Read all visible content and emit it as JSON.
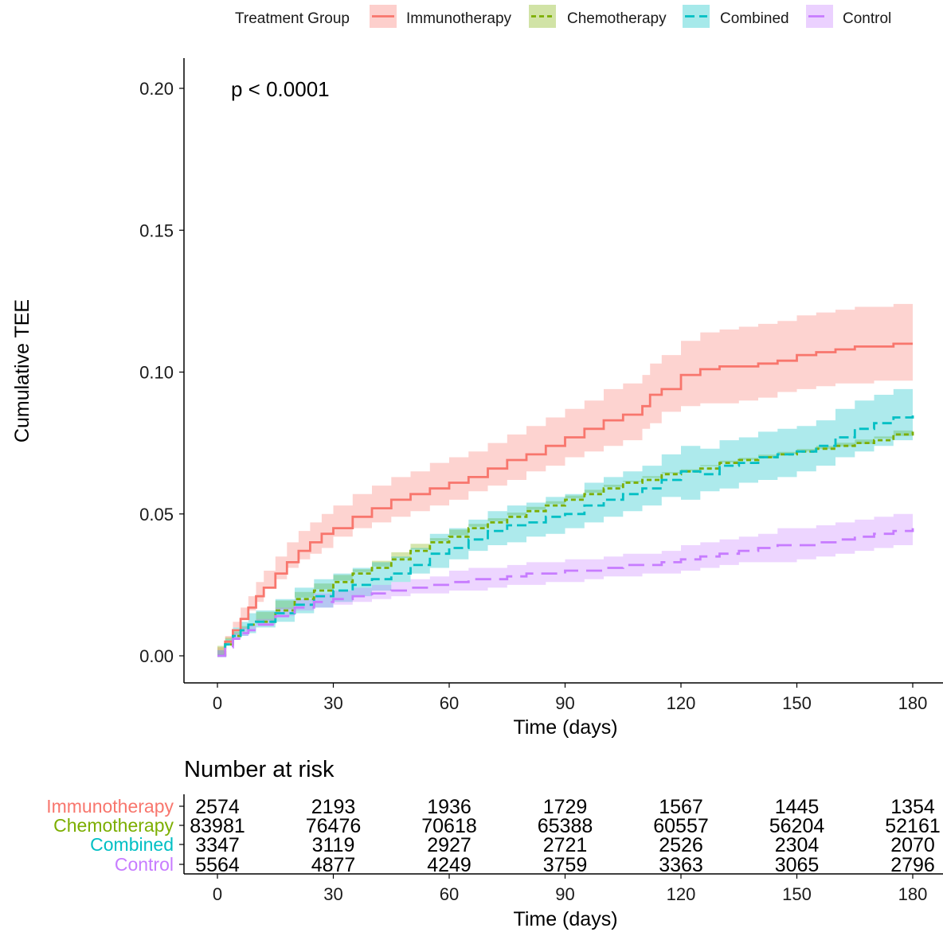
{
  "legend": {
    "title": "Treatment Group"
  },
  "pvalue": "p < 0.0001",
  "colors": {
    "Immunotherapy": "#F8766D",
    "Chemotherapy": "#7CAE00",
    "Combined": "#00BFC4",
    "Control": "#C77CFF"
  },
  "chart_data": [
    {
      "type": "line",
      "subtype": "cumulative-incidence-step",
      "xlabel": "Time (days)",
      "ylabel": "Cumulative TEE",
      "xlim": [
        0,
        180
      ],
      "ylim": [
        0,
        0.2
      ],
      "x_ticks": [
        0,
        30,
        60,
        90,
        120,
        150,
        180
      ],
      "y_ticks": [
        0.0,
        0.05,
        0.1,
        0.15,
        0.2
      ],
      "y_tick_labels": [
        "0.00",
        "0.05",
        "0.10",
        "0.15",
        "0.20"
      ],
      "grid": false,
      "legend_position": "top",
      "confidence_bands": true,
      "series": [
        {
          "name": "Immunotherapy",
          "line_style": "solid",
          "x": [
            0,
            2,
            4,
            6,
            8,
            10,
            12,
            15,
            18,
            21,
            24,
            27,
            30,
            35,
            40,
            45,
            50,
            55,
            60,
            65,
            70,
            75,
            80,
            85,
            90,
            95,
            100,
            105,
            110,
            112,
            115,
            120,
            125,
            130,
            135,
            140,
            145,
            150,
            155,
            160,
            165,
            170,
            175,
            180
          ],
          "y": [
            0,
            0.005,
            0.009,
            0.013,
            0.017,
            0.021,
            0.024,
            0.029,
            0.033,
            0.037,
            0.04,
            0.043,
            0.045,
            0.049,
            0.052,
            0.055,
            0.057,
            0.059,
            0.061,
            0.063,
            0.066,
            0.069,
            0.071,
            0.074,
            0.077,
            0.08,
            0.083,
            0.085,
            0.088,
            0.092,
            0.094,
            0.099,
            0.101,
            0.102,
            0.102,
            0.103,
            0.104,
            0.106,
            0.107,
            0.108,
            0.109,
            0.109,
            0.11,
            0.11
          ],
          "lower": [
            0,
            0.003,
            0.006,
            0.01,
            0.013,
            0.016,
            0.019,
            0.024,
            0.027,
            0.031,
            0.034,
            0.036,
            0.038,
            0.042,
            0.045,
            0.047,
            0.049,
            0.051,
            0.053,
            0.055,
            0.058,
            0.06,
            0.062,
            0.065,
            0.067,
            0.07,
            0.072,
            0.074,
            0.076,
            0.08,
            0.082,
            0.086,
            0.088,
            0.089,
            0.089,
            0.09,
            0.091,
            0.093,
            0.094,
            0.095,
            0.096,
            0.096,
            0.097,
            0.097
          ],
          "upper": [
            0,
            0.007,
            0.012,
            0.017,
            0.021,
            0.026,
            0.03,
            0.035,
            0.04,
            0.044,
            0.047,
            0.05,
            0.053,
            0.057,
            0.06,
            0.063,
            0.065,
            0.068,
            0.07,
            0.072,
            0.075,
            0.078,
            0.081,
            0.084,
            0.087,
            0.09,
            0.094,
            0.096,
            0.099,
            0.103,
            0.106,
            0.111,
            0.114,
            0.115,
            0.116,
            0.117,
            0.118,
            0.12,
            0.121,
            0.122,
            0.123,
            0.123,
            0.124,
            0.124
          ]
        },
        {
          "name": "Chemotherapy",
          "line_style": "dotted",
          "x": [
            0,
            2,
            4,
            6,
            8,
            10,
            15,
            20,
            25,
            30,
            35,
            40,
            45,
            50,
            55,
            60,
            65,
            70,
            75,
            80,
            85,
            90,
            95,
            100,
            105,
            110,
            115,
            120,
            125,
            130,
            135,
            140,
            145,
            150,
            155,
            160,
            165,
            170,
            175,
            180
          ],
          "y": [
            0,
            0.004,
            0.007,
            0.009,
            0.011,
            0.012,
            0.016,
            0.02,
            0.023,
            0.026,
            0.029,
            0.031,
            0.034,
            0.037,
            0.04,
            0.042,
            0.045,
            0.047,
            0.049,
            0.051,
            0.053,
            0.055,
            0.057,
            0.059,
            0.061,
            0.062,
            0.064,
            0.065,
            0.066,
            0.068,
            0.069,
            0.07,
            0.071,
            0.072,
            0.073,
            0.074,
            0.075,
            0.076,
            0.078,
            0.079
          ],
          "lower": [
            0,
            0.0035,
            0.0065,
            0.0085,
            0.0105,
            0.0115,
            0.0155,
            0.0195,
            0.0225,
            0.0255,
            0.0285,
            0.0305,
            0.0335,
            0.0365,
            0.0395,
            0.0415,
            0.0445,
            0.0465,
            0.0485,
            0.0505,
            0.0525,
            0.0545,
            0.0565,
            0.0585,
            0.0603,
            0.0613,
            0.0633,
            0.0643,
            0.0652,
            0.0672,
            0.0682,
            0.0691,
            0.0701,
            0.0711,
            0.072,
            0.0729,
            0.0738,
            0.0747,
            0.0766,
            0.0775
          ],
          "upper": [
            0,
            0.0045,
            0.0075,
            0.0095,
            0.0115,
            0.0125,
            0.0165,
            0.0205,
            0.0235,
            0.0265,
            0.0295,
            0.0315,
            0.0345,
            0.0375,
            0.0405,
            0.0425,
            0.0455,
            0.0475,
            0.0495,
            0.0515,
            0.0535,
            0.0555,
            0.0575,
            0.0595,
            0.0617,
            0.0627,
            0.0647,
            0.0657,
            0.0668,
            0.0688,
            0.0698,
            0.0709,
            0.0719,
            0.0729,
            0.074,
            0.0751,
            0.0762,
            0.0773,
            0.0794,
            0.0805
          ]
        },
        {
          "name": "Combined",
          "line_style": "dashed",
          "x": [
            0,
            2,
            4,
            6,
            8,
            10,
            15,
            20,
            25,
            30,
            35,
            40,
            45,
            50,
            55,
            60,
            65,
            70,
            75,
            80,
            85,
            90,
            95,
            100,
            105,
            110,
            115,
            120,
            125,
            130,
            135,
            140,
            145,
            150,
            155,
            160,
            165,
            170,
            175,
            180
          ],
          "y": [
            0,
            0.004,
            0.007,
            0.009,
            0.011,
            0.012,
            0.015,
            0.018,
            0.021,
            0.023,
            0.025,
            0.027,
            0.029,
            0.032,
            0.036,
            0.038,
            0.041,
            0.044,
            0.046,
            0.047,
            0.049,
            0.05,
            0.053,
            0.055,
            0.057,
            0.059,
            0.062,
            0.065,
            0.064,
            0.067,
            0.068,
            0.07,
            0.071,
            0.072,
            0.074,
            0.077,
            0.08,
            0.082,
            0.084,
            0.086
          ],
          "lower": [
            0,
            0.002,
            0.004,
            0.006,
            0.007,
            0.008,
            0.01,
            0.012,
            0.015,
            0.017,
            0.019,
            0.021,
            0.023,
            0.026,
            0.029,
            0.031,
            0.034,
            0.037,
            0.039,
            0.04,
            0.042,
            0.043,
            0.045,
            0.047,
            0.049,
            0.051,
            0.053,
            0.056,
            0.055,
            0.058,
            0.059,
            0.061,
            0.062,
            0.063,
            0.065,
            0.067,
            0.07,
            0.072,
            0.074,
            0.076
          ],
          "upper": [
            0,
            0.006,
            0.01,
            0.012,
            0.015,
            0.016,
            0.02,
            0.024,
            0.027,
            0.029,
            0.031,
            0.033,
            0.035,
            0.038,
            0.043,
            0.045,
            0.048,
            0.051,
            0.053,
            0.054,
            0.056,
            0.057,
            0.061,
            0.063,
            0.065,
            0.067,
            0.071,
            0.074,
            0.073,
            0.076,
            0.077,
            0.079,
            0.08,
            0.081,
            0.083,
            0.087,
            0.09,
            0.092,
            0.094,
            0.096
          ]
        },
        {
          "name": "Control",
          "line_style": "longdash",
          "x": [
            0,
            2,
            4,
            6,
            8,
            10,
            15,
            20,
            25,
            30,
            35,
            40,
            45,
            50,
            55,
            60,
            65,
            70,
            75,
            80,
            85,
            90,
            95,
            100,
            105,
            110,
            115,
            120,
            125,
            130,
            135,
            140,
            145,
            150,
            155,
            160,
            165,
            170,
            175,
            180
          ],
          "y": [
            0,
            0.003,
            0.006,
            0.008,
            0.009,
            0.011,
            0.014,
            0.017,
            0.019,
            0.02,
            0.021,
            0.022,
            0.023,
            0.024,
            0.025,
            0.026,
            0.027,
            0.027,
            0.028,
            0.029,
            0.029,
            0.03,
            0.03,
            0.031,
            0.032,
            0.032,
            0.033,
            0.034,
            0.035,
            0.036,
            0.037,
            0.038,
            0.039,
            0.039,
            0.04,
            0.041,
            0.042,
            0.043,
            0.044,
            0.045
          ],
          "lower": [
            0,
            0.002,
            0.004,
            0.006,
            0.007,
            0.009,
            0.011,
            0.014,
            0.016,
            0.017,
            0.018,
            0.019,
            0.02,
            0.021,
            0.022,
            0.022,
            0.023,
            0.023,
            0.024,
            0.025,
            0.025,
            0.026,
            0.026,
            0.027,
            0.028,
            0.028,
            0.029,
            0.029,
            0.03,
            0.031,
            0.032,
            0.033,
            0.033,
            0.033,
            0.034,
            0.035,
            0.036,
            0.037,
            0.038,
            0.039
          ],
          "upper": [
            0,
            0.004,
            0.008,
            0.01,
            0.011,
            0.013,
            0.017,
            0.02,
            0.022,
            0.023,
            0.024,
            0.025,
            0.026,
            0.027,
            0.028,
            0.03,
            0.031,
            0.031,
            0.032,
            0.033,
            0.033,
            0.034,
            0.034,
            0.035,
            0.036,
            0.036,
            0.037,
            0.039,
            0.04,
            0.041,
            0.042,
            0.043,
            0.045,
            0.045,
            0.046,
            0.047,
            0.048,
            0.049,
            0.05,
            0.051
          ]
        }
      ]
    },
    {
      "type": "table",
      "title": "Number at risk",
      "xlabel": "Time (days)",
      "x_ticks": [
        0,
        30,
        60,
        90,
        120,
        150,
        180
      ],
      "rows": [
        {
          "name": "Immunotherapy",
          "values": [
            2574,
            2193,
            1936,
            1729,
            1567,
            1445,
            1354
          ]
        },
        {
          "name": "Chemotherapy",
          "values": [
            83981,
            76476,
            70618,
            65388,
            60557,
            56204,
            52161
          ]
        },
        {
          "name": "Combined",
          "values": [
            3347,
            3119,
            2927,
            2721,
            2526,
            2304,
            2070
          ]
        },
        {
          "name": "Control",
          "values": [
            5564,
            4877,
            4249,
            3759,
            3363,
            3065,
            2796
          ]
        }
      ]
    }
  ]
}
